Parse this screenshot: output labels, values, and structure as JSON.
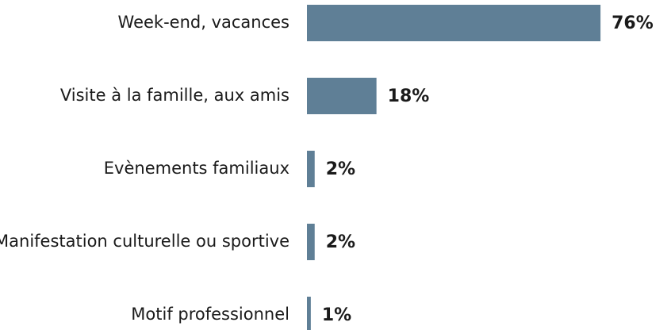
{
  "chart_data": {
    "type": "barh",
    "categories": [
      "Week-end, vacances",
      "Visite à la famille, aux amis",
      "Evènements familiaux",
      "Manifestation culturelle ou sportive",
      "Motif professionnel"
    ],
    "values": [
      76,
      18,
      2,
      2,
      1
    ],
    "value_labels": [
      "76%",
      "18%",
      "2%",
      "2%",
      "1%"
    ],
    "color": "#5f7f96"
  }
}
